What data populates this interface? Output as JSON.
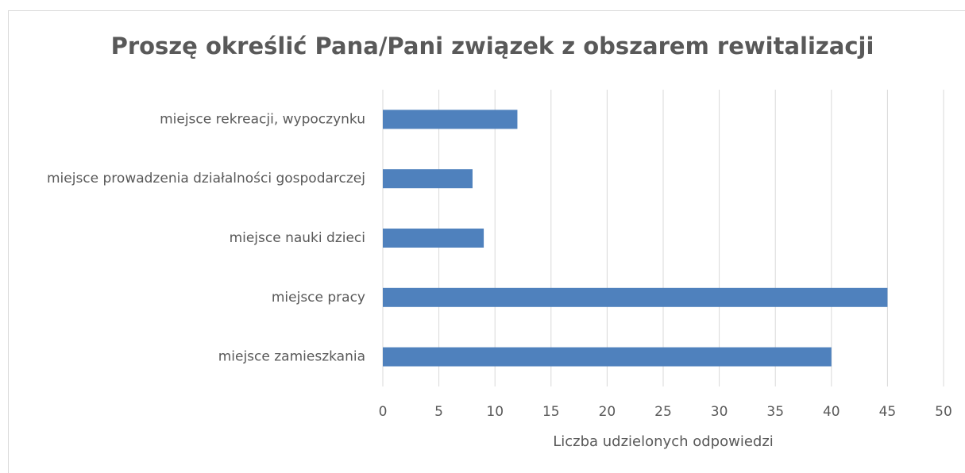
{
  "chart_data": {
    "type": "hbar",
    "title": "Proszę określić Pana/Pani związek z obszarem rewitalizacji",
    "categories": [
      "miejsce rekreacji, wypoczynku",
      "miejsce prowadzenia działalności gospodarczej",
      "miejsce nauki dzieci",
      "miejsce pracy",
      "miejsce zamieszkania"
    ],
    "values": [
      12,
      8,
      9,
      45,
      40
    ],
    "color": "#4f81bd",
    "xlabel": "Liczba udzielonych odpowiedzi",
    "xlim": [
      0,
      50
    ],
    "xticks": [
      0,
      5,
      10,
      15,
      20,
      25,
      30,
      35,
      40,
      45,
      50
    ],
    "grid": true
  }
}
